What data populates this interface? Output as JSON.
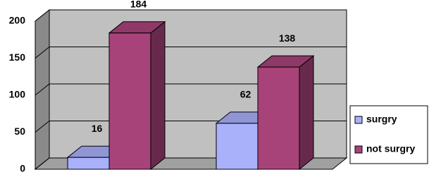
{
  "chart_data": {
    "type": "bar3d",
    "categories": [
      null,
      null
    ],
    "series": [
      {
        "name": "surgry",
        "color": "#a9b1fb",
        "values": [
          16,
          62
        ]
      },
      {
        "name": "not surgry",
        "color": "#a8437a",
        "values": [
          184,
          138
        ]
      }
    ],
    "ylim": [
      0,
      200
    ],
    "yticks": [
      0,
      50,
      100,
      150,
      200
    ],
    "grid": true,
    "legend": "right"
  }
}
